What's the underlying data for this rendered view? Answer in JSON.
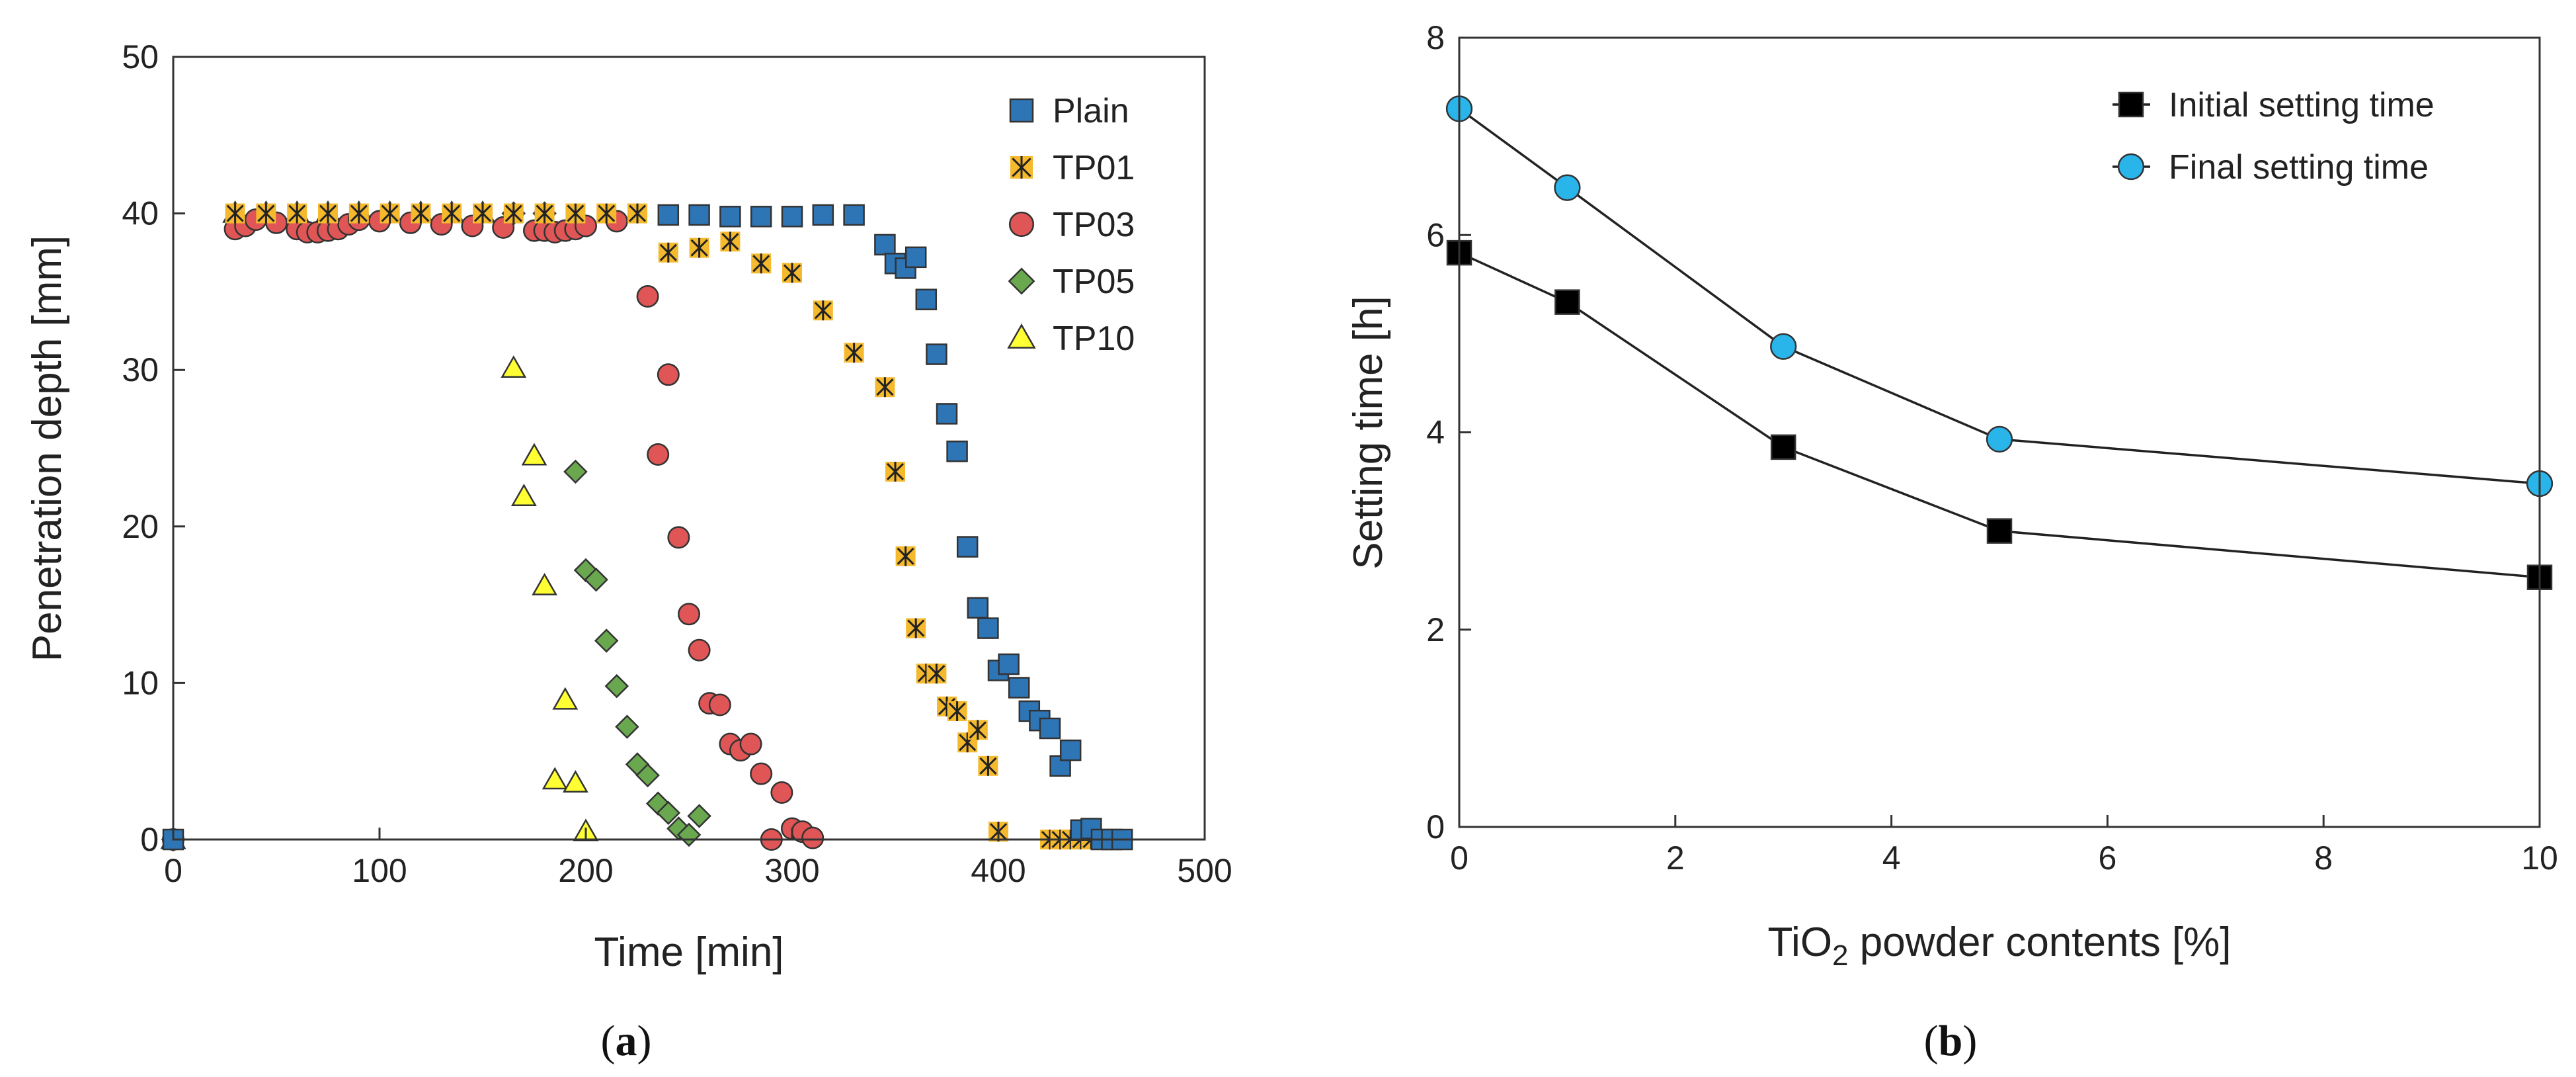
{
  "chart_data": [
    {
      "type": "scatter",
      "panel": "a",
      "panel_label": "a",
      "xlabel": "Time [min]",
      "ylabel": "Penetration depth [mm]",
      "xlim": [
        0,
        500
      ],
      "ylim": [
        0,
        50
      ],
      "xticks": [
        "0",
        "100",
        "200",
        "300",
        "400",
        "500"
      ],
      "yticks": [
        "0",
        "10",
        "20",
        "30",
        "40",
        "50"
      ],
      "legend_position": "top-right",
      "series": [
        {
          "name": "Plain",
          "marker": "square",
          "color": "#2e75b6",
          "x": [
            0,
            240,
            255,
            270,
            285,
            300,
            315,
            330,
            345,
            350,
            355,
            360,
            365,
            370,
            375,
            380,
            385,
            390,
            395,
            400,
            405,
            410,
            415,
            420,
            425,
            430,
            435,
            440,
            445,
            450,
            455,
            460
          ],
          "y": [
            0,
            39.9,
            39.9,
            39.8,
            39.8,
            39.8,
            39.9,
            39.9,
            38.0,
            36.8,
            36.5,
            37.2,
            34.5,
            31.0,
            27.2,
            24.8,
            18.7,
            14.8,
            13.5,
            10.8,
            11.2,
            9.7,
            8.2,
            7.6,
            7.1,
            4.7,
            5.7,
            0.6,
            0.7,
            0,
            0,
            0
          ]
        },
        {
          "name": "TP01",
          "marker": "asterisk-box",
          "color": "#f5b92e",
          "x": [
            0,
            30,
            45,
            60,
            75,
            90,
            105,
            120,
            135,
            150,
            165,
            180,
            195,
            210,
            225,
            240,
            255,
            270,
            285,
            300,
            315,
            330,
            345,
            350,
            355,
            360,
            365,
            370,
            375,
            380,
            385,
            390,
            395,
            400,
            425,
            430,
            435,
            440,
            445,
            450
          ],
          "y": [
            0,
            40,
            40,
            40,
            40,
            40,
            40,
            40,
            40,
            40,
            40,
            40,
            40,
            40,
            40,
            37.5,
            37.8,
            38.2,
            36.8,
            36.2,
            33.8,
            31.1,
            28.9,
            23.5,
            18.1,
            13.5,
            10.6,
            10.6,
            8.5,
            8.2,
            6.2,
            7.0,
            4.7,
            0.5,
            0,
            0,
            0,
            0,
            0,
            0
          ]
        },
        {
          "name": "TP03",
          "marker": "circle",
          "color": "#e05555",
          "x": [
            0,
            30,
            35,
            40,
            50,
            60,
            65,
            70,
            75,
            80,
            85,
            90,
            100,
            115,
            130,
            145,
            160,
            175,
            180,
            185,
            190,
            195,
            200,
            215,
            230,
            235,
            240,
            245,
            250,
            255,
            260,
            265,
            270,
            275,
            280,
            285,
            290,
            295,
            300,
            305,
            310
          ],
          "y": [
            0,
            39.0,
            39.2,
            39.6,
            39.4,
            39.0,
            38.8,
            38.8,
            38.9,
            39.0,
            39.3,
            39.6,
            39.5,
            39.4,
            39.3,
            39.2,
            39.1,
            38.9,
            38.9,
            38.8,
            38.9,
            39.0,
            39.2,
            39.5,
            34.7,
            24.6,
            29.7,
            19.3,
            14.4,
            12.1,
            8.7,
            8.6,
            6.1,
            5.7,
            6.1,
            4.2,
            0,
            3.0,
            0.7,
            0.5,
            0.1
          ]
        },
        {
          "name": "TP05",
          "marker": "diamond",
          "color": "#6aa84f",
          "x": [
            0,
            165,
            180,
            195,
            200,
            205,
            210,
            215,
            220,
            225,
            230,
            235,
            240,
            245,
            250,
            255
          ],
          "y": [
            0,
            40,
            40,
            23.5,
            17.2,
            16.6,
            12.7,
            9.8,
            7.2,
            4.8,
            4.1,
            2.3,
            1.7,
            0.7,
            0.3,
            1.5
          ]
        },
        {
          "name": "TP10",
          "marker": "triangle",
          "color": "#ffff33",
          "x": [
            0,
            30,
            45,
            60,
            75,
            90,
            105,
            120,
            135,
            150,
            165,
            170,
            175,
            180,
            185,
            190,
            195,
            200
          ],
          "y": [
            0,
            40,
            40,
            40,
            40,
            40,
            40,
            40,
            40,
            40,
            30.1,
            21.9,
            24.5,
            16.2,
            3.8,
            8.9,
            3.6,
            0.5
          ]
        }
      ]
    },
    {
      "type": "line",
      "panel": "b",
      "panel_label": "b",
      "xlabel_main": "TiO",
      "xlabel_sub": "2",
      "xlabel_rest": " powder contents [%]",
      "ylabel": "Setting time [h]",
      "xlim": [
        0,
        10
      ],
      "ylim": [
        0,
        8
      ],
      "xticks": [
        "0",
        "2",
        "4",
        "6",
        "8",
        "10"
      ],
      "yticks": [
        "0",
        "2",
        "4",
        "6",
        "8"
      ],
      "legend_position": "top-right",
      "x": [
        0,
        1,
        3,
        5,
        10
      ],
      "series": [
        {
          "name": "Initial setting time",
          "marker": "square",
          "color": "#000000",
          "values": [
            5.82,
            5.32,
            3.85,
            3.0,
            2.53
          ]
        },
        {
          "name": "Final setting time",
          "marker": "circle",
          "color": "#29b5ea",
          "values": [
            7.28,
            6.48,
            4.87,
            3.93,
            3.48
          ]
        }
      ]
    }
  ]
}
